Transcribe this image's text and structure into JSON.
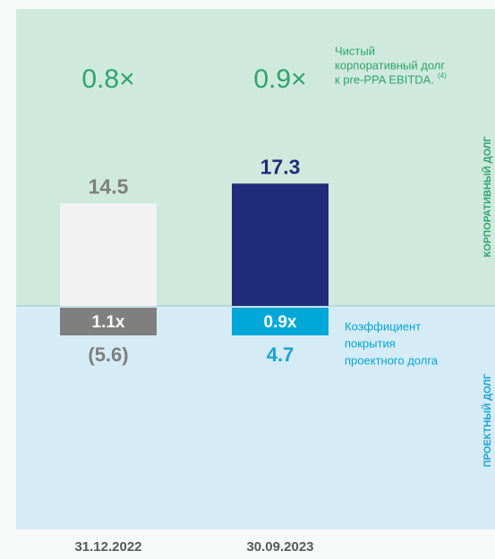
{
  "chart_data": {
    "type": "bar",
    "categories": [
      "31.12.2022",
      "30.09.2023"
    ],
    "ylim": [
      0,
      42
    ],
    "series": [
      {
        "name": "КОРПОРАТИВНЫЙ ДОЛГ",
        "colors": [
          "#f2f2f2",
          "#1f2d7b"
        ],
        "label_colors": [
          "#7f7f7f",
          "#1f2d7b"
        ],
        "values": [
          14.5,
          17.3
        ]
      }
    ],
    "project_debt": {
      "name": "ПРОЕКТНЫЙ ДОЛГ",
      "values": [
        -5.6,
        4.7
      ],
      "value_labels": [
        "(5.6)",
        "4.7"
      ],
      "colors": [
        "#7f7f7f",
        "#1aa3d4"
      ]
    },
    "leverage": {
      "values": [
        0.8,
        0.9
      ],
      "value_labels": [
        "0.8×",
        "0.9×"
      ],
      "color": "#2ea46e",
      "annotation": [
        "Чистый",
        "корпоративный долг",
        "к pre-PPA EBITDA."
      ],
      "footnote": "(4)"
    },
    "coverage": {
      "values": [
        1.1,
        0.9
      ],
      "value_labels": [
        "1.1x",
        "0.9x"
      ],
      "colors": [
        "#7f7f7f",
        "#00a8d8"
      ],
      "annotation": [
        "Коэффициент",
        "покрытия",
        "проектного долга"
      ]
    }
  }
}
